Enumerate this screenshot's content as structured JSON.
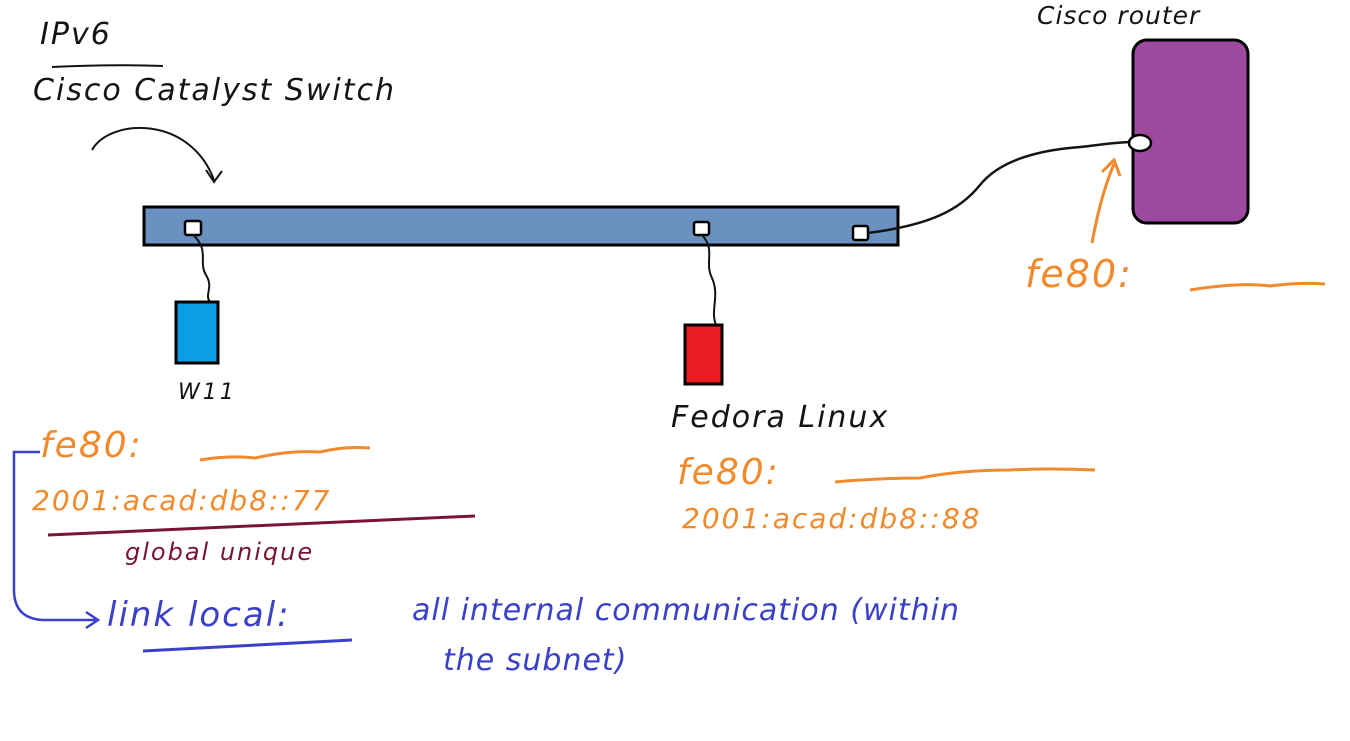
{
  "heading": "IPv6",
  "switch_label": "Cisco Catalyst Switch",
  "router_label": "Cisco router",
  "router_address": "fe80:",
  "host_w11": {
    "name": "W11",
    "link_local": "fe80:",
    "global": "2001:acad:db8::77",
    "global_note": "global unique"
  },
  "host_fedora": {
    "name": "Fedora Linux",
    "link_local": "fe80:",
    "global": "2001:acad:db8::88"
  },
  "link_local_note": {
    "label": "link local:",
    "text_line1": "all internal communication (within",
    "text_line2": "the subnet)"
  },
  "colors": {
    "switch": "#6b91c0",
    "router": "#9e49a0",
    "w11": "#0a9ee6",
    "fedora": "#ec1c24",
    "annotation_orange": "#f08a2c",
    "annotation_maroon": "#7a1430",
    "annotation_blue": "#3a40c8",
    "ink": "#141414"
  },
  "icons": [
    "port-icon",
    "cable-icon",
    "arrow-icon"
  ]
}
